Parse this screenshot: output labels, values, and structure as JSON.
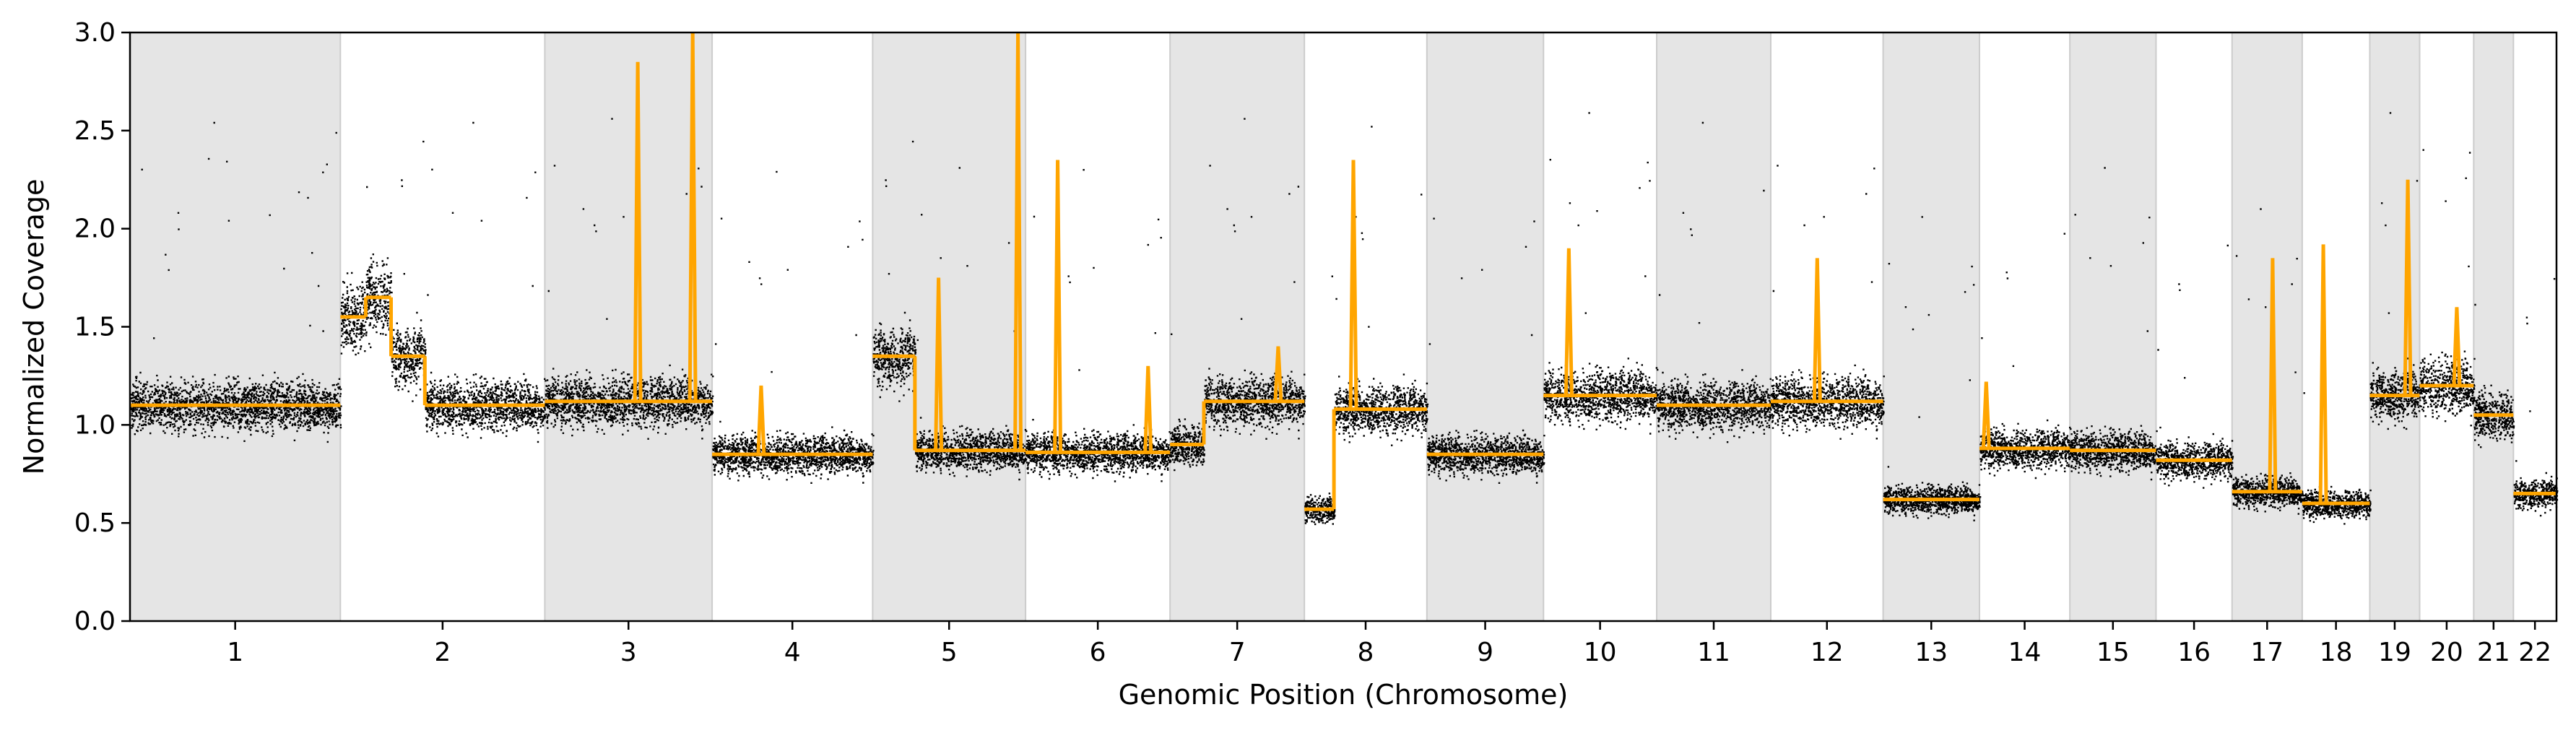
{
  "chart_data": {
    "type": "scatter",
    "xlabel": "Genomic Position (Chromosome)",
    "ylabel": "Normalized Coverage",
    "ylim": [
      0,
      3
    ],
    "yticks": [
      "0.0",
      "0.5",
      "1.0",
      "1.5",
      "2.0",
      "2.5",
      "3.0"
    ],
    "grid": false,
    "legend": "none",
    "colors": {
      "points": "#000000",
      "segments": "#FFA500",
      "band": "#E5E5E5"
    },
    "chromosomes": [
      {
        "name": "1",
        "length": 249
      },
      {
        "name": "2",
        "length": 242
      },
      {
        "name": "3",
        "length": 198
      },
      {
        "name": "4",
        "length": 190
      },
      {
        "name": "5",
        "length": 181
      },
      {
        "name": "6",
        "length": 171
      },
      {
        "name": "7",
        "length": 159
      },
      {
        "name": "8",
        "length": 145
      },
      {
        "name": "9",
        "length": 138
      },
      {
        "name": "10",
        "length": 134
      },
      {
        "name": "11",
        "length": 135
      },
      {
        "name": "12",
        "length": 133
      },
      {
        "name": "13",
        "length": 114
      },
      {
        "name": "14",
        "length": 107
      },
      {
        "name": "15",
        "length": 102
      },
      {
        "name": "16",
        "length": 90
      },
      {
        "name": "17",
        "length": 83
      },
      {
        "name": "18",
        "length": 80
      },
      {
        "name": "19",
        "length": 59
      },
      {
        "name": "20",
        "length": 64
      },
      {
        "name": "21",
        "length": 47
      },
      {
        "name": "22",
        "length": 51
      }
    ],
    "segments": [
      {
        "chrom": "1",
        "start": 0,
        "end": 249,
        "value": 1.1
      },
      {
        "chrom": "2",
        "start": 0,
        "end": 30,
        "value": 1.55
      },
      {
        "chrom": "2",
        "start": 30,
        "end": 60,
        "value": 1.65
      },
      {
        "chrom": "2",
        "start": 60,
        "end": 100,
        "value": 1.35
      },
      {
        "chrom": "2",
        "start": 100,
        "end": 242,
        "value": 1.1
      },
      {
        "chrom": "3",
        "start": 0,
        "end": 198,
        "value": 1.12
      },
      {
        "chrom": "4",
        "start": 0,
        "end": 190,
        "value": 0.85
      },
      {
        "chrom": "5",
        "start": 0,
        "end": 50,
        "value": 1.35
      },
      {
        "chrom": "5",
        "start": 50,
        "end": 181,
        "value": 0.87
      },
      {
        "chrom": "6",
        "start": 0,
        "end": 171,
        "value": 0.86
      },
      {
        "chrom": "7",
        "start": 0,
        "end": 40,
        "value": 0.9
      },
      {
        "chrom": "7",
        "start": 40,
        "end": 159,
        "value": 1.12
      },
      {
        "chrom": "8",
        "start": 0,
        "end": 35,
        "value": 0.57
      },
      {
        "chrom": "8",
        "start": 35,
        "end": 145,
        "value": 1.08
      },
      {
        "chrom": "9",
        "start": 0,
        "end": 138,
        "value": 0.85
      },
      {
        "chrom": "10",
        "start": 0,
        "end": 134,
        "value": 1.15
      },
      {
        "chrom": "11",
        "start": 0,
        "end": 135,
        "value": 1.1
      },
      {
        "chrom": "12",
        "start": 0,
        "end": 133,
        "value": 1.12
      },
      {
        "chrom": "13",
        "start": 0,
        "end": 114,
        "value": 0.62
      },
      {
        "chrom": "14",
        "start": 0,
        "end": 107,
        "value": 0.88
      },
      {
        "chrom": "15",
        "start": 0,
        "end": 102,
        "value": 0.87
      },
      {
        "chrom": "16",
        "start": 0,
        "end": 90,
        "value": 0.82
      },
      {
        "chrom": "17",
        "start": 0,
        "end": 83,
        "value": 0.66
      },
      {
        "chrom": "18",
        "start": 0,
        "end": 80,
        "value": 0.6
      },
      {
        "chrom": "19",
        "start": 0,
        "end": 59,
        "value": 1.15
      },
      {
        "chrom": "20",
        "start": 0,
        "end": 64,
        "value": 1.2
      },
      {
        "chrom": "21",
        "start": 0,
        "end": 47,
        "value": 1.05
      },
      {
        "chrom": "22",
        "start": 0,
        "end": 51,
        "value": 0.65
      }
    ],
    "spikes": [
      {
        "chrom": "3",
        "pos": 110,
        "value": 2.85
      },
      {
        "chrom": "3",
        "pos": 175,
        "value": 3.0
      },
      {
        "chrom": "4",
        "pos": 58,
        "value": 1.2
      },
      {
        "chrom": "5",
        "pos": 78,
        "value": 1.75
      },
      {
        "chrom": "5",
        "pos": 172,
        "value": 3.0
      },
      {
        "chrom": "6",
        "pos": 38,
        "value": 2.35
      },
      {
        "chrom": "6",
        "pos": 145,
        "value": 1.3
      },
      {
        "chrom": "7",
        "pos": 128,
        "value": 1.4
      },
      {
        "chrom": "8",
        "pos": 58,
        "value": 2.35
      },
      {
        "chrom": "10",
        "pos": 30,
        "value": 1.9
      },
      {
        "chrom": "12",
        "pos": 55,
        "value": 1.85
      },
      {
        "chrom": "14",
        "pos": 8,
        "value": 1.22
      },
      {
        "chrom": "17",
        "pos": 48,
        "value": 1.85
      },
      {
        "chrom": "18",
        "pos": 25,
        "value": 1.92
      },
      {
        "chrom": "19",
        "pos": 45,
        "value": 2.25
      },
      {
        "chrom": "20",
        "pos": 44,
        "value": 1.6
      }
    ]
  }
}
